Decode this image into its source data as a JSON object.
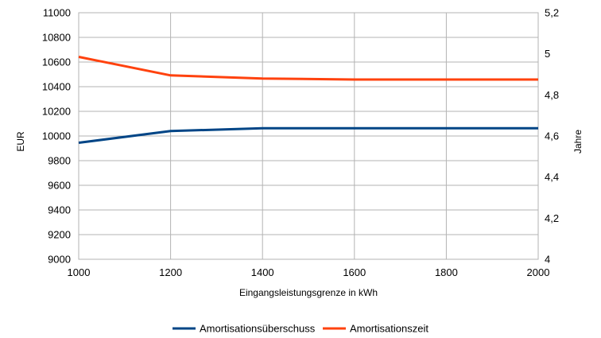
{
  "chart_data": {
    "type": "line",
    "x": [
      1000,
      1200,
      1400,
      1600,
      1800,
      2000
    ],
    "x_tick_labels": [
      "1000",
      "1200",
      "1400",
      "1600",
      "1800",
      "2000"
    ],
    "xlabel": "Eingangsleistungsgrenze in kWh",
    "ylabel": "EUR",
    "y2label": "Jahre",
    "ylim": [
      9000,
      11000
    ],
    "y_tick_labels": [
      "9000",
      "9200",
      "9400",
      "9600",
      "9800",
      "10000",
      "10200",
      "10400",
      "10600",
      "10800",
      "11000"
    ],
    "y2lim": [
      4,
      5.2
    ],
    "y2_tick_labels": [
      "4",
      "4,2",
      "4,4",
      "4,6",
      "4,8",
      "5",
      "5,2"
    ],
    "grid": true,
    "legend_position": "bottom",
    "series": [
      {
        "name": "Amortisationsüberschuss",
        "axis": "left",
        "color": "#004586",
        "values": [
          9945,
          10040,
          10063,
          10063,
          10063,
          10063
        ]
      },
      {
        "name": "Amortisationszeit",
        "axis": "right",
        "color": "#ff420e",
        "values": [
          4.985,
          4.895,
          4.88,
          4.875,
          4.875,
          4.875
        ]
      }
    ]
  }
}
